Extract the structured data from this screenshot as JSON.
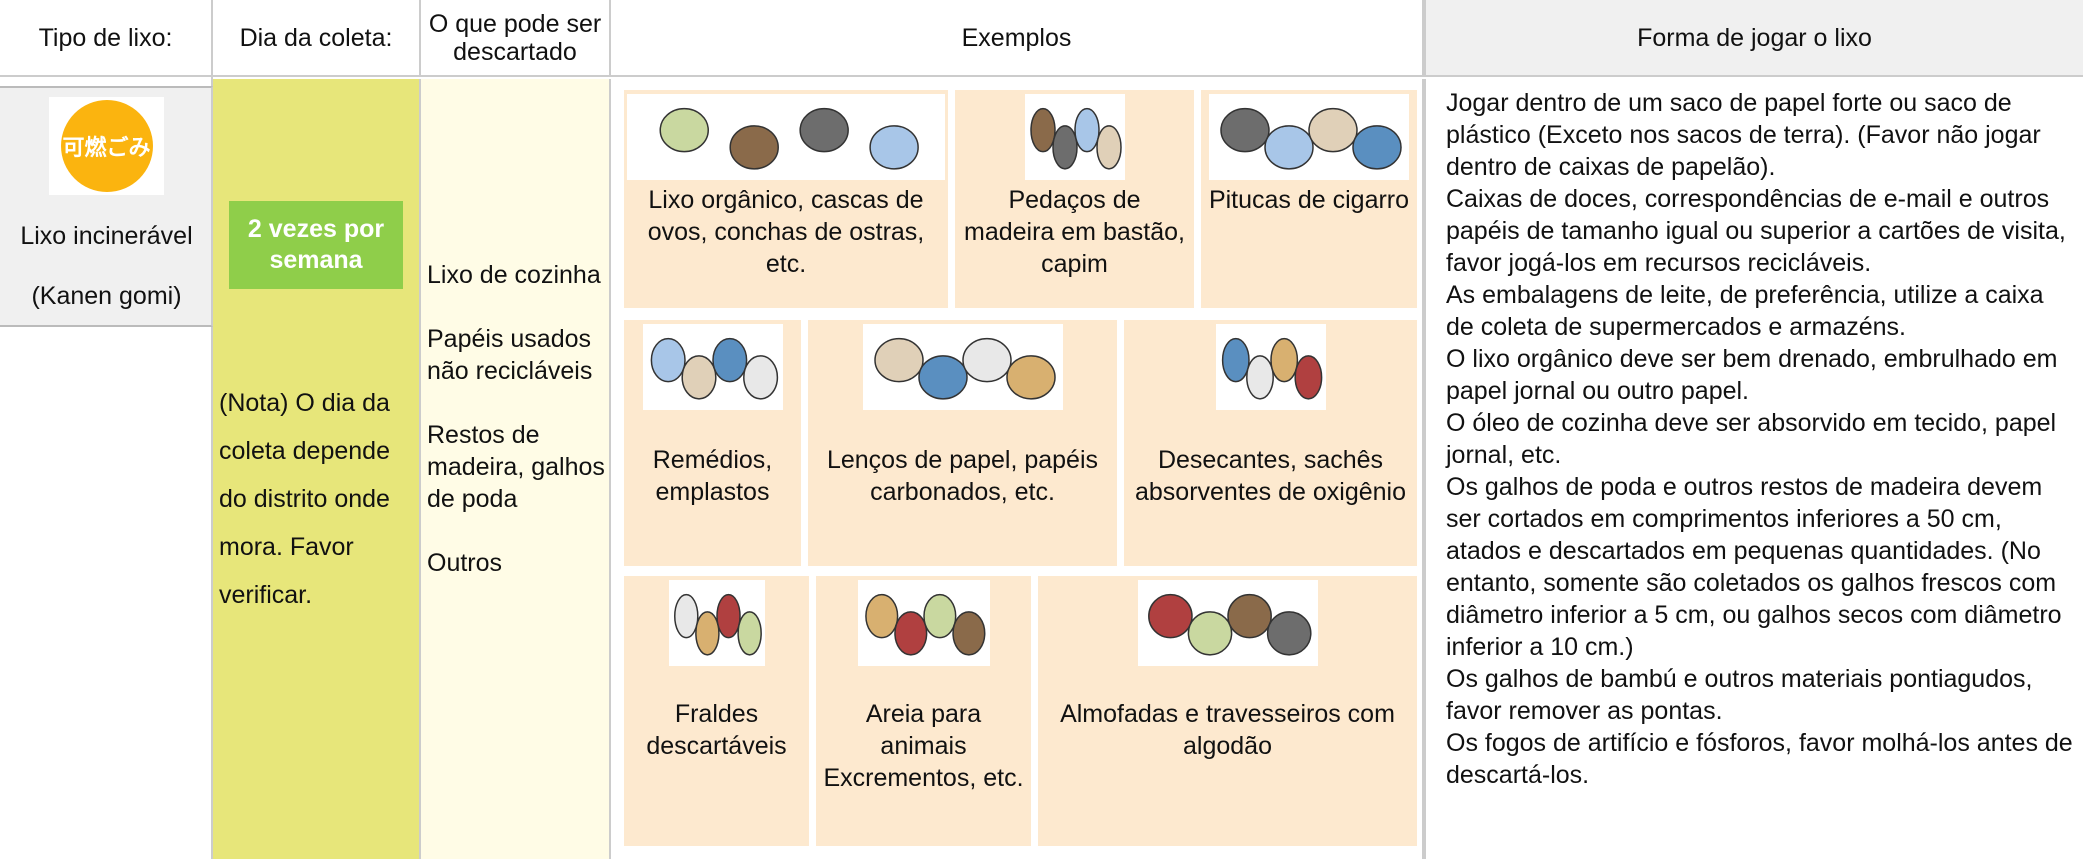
{
  "header": [
    "Tipo de lixo:",
    "Dia da coleta:",
    "O que pode ser descartado",
    "Exemplos",
    "Forma de jogar o lixo"
  ],
  "type": {
    "badge": "可燃ごみ",
    "name": "Lixo incinerável",
    "alias": "(Kanen gomi)"
  },
  "collection": {
    "frequency": "2 vezes por semana",
    "note": "(Nota) O dia da coleta depende do distrito onde mora. Favor verificar."
  },
  "items": [
    "Lixo de cozinha",
    "Papéis usados não recicláveis",
    "Restos de madeira, galhos de poda",
    "Outros"
  ],
  "examples": [
    [
      "Lixo orgânico, cascas de ovos, conchas de ostras, etc.",
      "Pedaços de madeira em bastão, capim",
      "Pitucas de cigarro"
    ],
    [
      "Remédios, emplastos",
      "Lenços de papel, papéis carbonados, etc.",
      "Desecantes, sachês absorventes de oxigênio"
    ],
    [
      "Fraldes descartáveis",
      "Areia para animais Excrementos, etc.",
      "Almofadas e travesseiros com algodão"
    ]
  ],
  "instructions": [
    "Jogar dentro de um saco de papel forte ou saco de plástico (Exceto nos sacos de terra). (Favor não jogar dentro de caixas de papelão).",
    "Caixas de doces, correspondências de e-mail e outros papéis de tamanho igual ou superior a cartões de visita, favor jogá-los em recursos recicláveis.",
    "As embalagens de leite, de preferência, utilize a caixa de coleta de supermercados e armazéns.",
    "O lixo orgânico deve ser bem drenado, embrulhado em papel jornal ou outro papel.",
    "O óleo de cozinha deve ser absorvido em tecido, papel jornal, etc.",
    "Os galhos de poda e outros restos de madeira devem ser cortados em comprimentos inferiores a 50 cm, atados e descartados em pequenas quantidades. (No entanto, somente são coletados os galhos frescos com diâmetro inferior a 5 cm, ou galhos secos com diâmetro inferior a 10 cm.)",
    "Os galhos de bambú e outros materiais pontiagudos, favor remover as pontas.",
    "Os fogos de artifício e fósforos, favor molhá-los antes de descartá-los."
  ]
}
